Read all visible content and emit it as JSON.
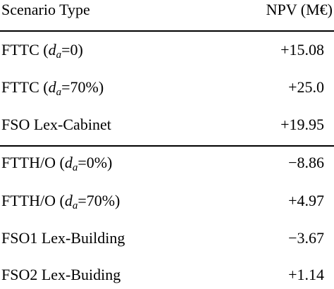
{
  "table": {
    "headers": {
      "scenario": "Scenario Type",
      "npv": "NPV (M€)"
    },
    "groups": [
      {
        "rows": [
          {
            "scenario": [
              "FTTC (",
              "d",
              "a",
              "=0)"
            ],
            "npv": "+15.08"
          },
          {
            "scenario": [
              "FTTC (",
              "d",
              "a",
              "=70%)"
            ],
            "npv": "+25.0"
          },
          {
            "scenario": [
              "FSO Lex-Cabinet"
            ],
            "npv": "+19.95"
          }
        ]
      },
      {
        "rows": [
          {
            "scenario": [
              "FTTH/O (",
              "d",
              "a",
              "=0%)"
            ],
            "npv": "−8.86"
          },
          {
            "scenario": [
              "FTTH/O (",
              "d",
              "a",
              "=70%)"
            ],
            "npv": "+4.97"
          },
          {
            "scenario": [
              "FSO1 Lex-Building"
            ],
            "npv": "−3.67"
          },
          {
            "scenario": [
              "FSO2 Lex-Buiding"
            ],
            "npv": "+1.14"
          }
        ]
      }
    ]
  }
}
